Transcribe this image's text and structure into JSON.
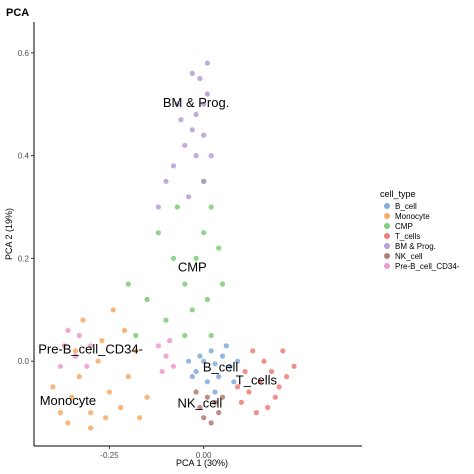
{
  "chart_data": {
    "type": "scatter",
    "title": "PCA",
    "xlabel": "PCA 1 (30%)",
    "ylabel": "PCA 2 (19%)",
    "xlim": [
      -0.45,
      0.42
    ],
    "ylim": [
      -0.165,
      0.66
    ],
    "x_ticks": [
      {
        "value": -0.25,
        "label": "-0.25"
      },
      {
        "value": 0.0,
        "label": "0.00"
      }
    ],
    "y_ticks": [
      {
        "value": 0.0,
        "label": "0.0"
      },
      {
        "value": 0.2,
        "label": "0.2"
      },
      {
        "value": 0.4,
        "label": "0.4"
      },
      {
        "value": 0.6,
        "label": "0.6"
      }
    ],
    "grid": false,
    "legend": {
      "title": "cell_type",
      "position": "right"
    },
    "series": [
      {
        "name": "B_cell",
        "color": "#6f9fd6",
        "points": [
          [
            0.03,
            -0.005
          ],
          [
            0.0,
            0.0
          ],
          [
            0.05,
            0.01
          ],
          [
            -0.02,
            -0.02
          ],
          [
            0.07,
            -0.01
          ],
          [
            0.02,
            0.02
          ],
          [
            -0.04,
            0.0
          ],
          [
            0.04,
            -0.03
          ],
          [
            0.09,
            0.0
          ],
          [
            0.01,
            -0.04
          ],
          [
            0.06,
            0.03
          ],
          [
            -0.01,
            0.01
          ],
          [
            0.03,
            -0.06
          ],
          [
            0.08,
            -0.04
          ],
          [
            -0.03,
            -0.03
          ]
        ]
      },
      {
        "name": "Monocyte",
        "color": "#f79d4f",
        "points": [
          [
            -0.38,
            -0.1
          ],
          [
            -0.35,
            -0.07
          ],
          [
            -0.3,
            -0.1
          ],
          [
            -0.25,
            -0.06
          ],
          [
            -0.33,
            -0.03
          ],
          [
            -0.28,
            0.0
          ],
          [
            -0.22,
            -0.09
          ],
          [
            -0.36,
            -0.12
          ],
          [
            -0.2,
            -0.03
          ],
          [
            -0.27,
            0.04
          ],
          [
            -0.32,
            0.08
          ],
          [
            -0.18,
            0.02
          ],
          [
            -0.24,
            0.1
          ],
          [
            -0.15,
            -0.07
          ],
          [
            -0.3,
            -0.13
          ],
          [
            -0.4,
            -0.05
          ],
          [
            -0.26,
            -0.11
          ],
          [
            -0.21,
            0.06
          ],
          [
            -0.34,
            0.02
          ],
          [
            -0.17,
            -0.11
          ]
        ]
      },
      {
        "name": "CMP",
        "color": "#6cc463",
        "points": [
          [
            -0.02,
            0.2
          ],
          [
            0.0,
            0.25
          ],
          [
            -0.05,
            0.15
          ],
          [
            0.02,
            0.3
          ],
          [
            -0.03,
            0.1
          ],
          [
            -0.08,
            0.2
          ],
          [
            0.01,
            0.12
          ],
          [
            -0.1,
            0.08
          ],
          [
            -0.15,
            0.12
          ],
          [
            -0.05,
            0.05
          ],
          [
            0.04,
            0.22
          ],
          [
            -0.12,
            0.25
          ],
          [
            -0.07,
            0.3
          ],
          [
            0.0,
            0.35
          ],
          [
            -0.2,
            0.15
          ],
          [
            0.02,
            0.05
          ],
          [
            -0.18,
            0.05
          ],
          [
            0.05,
            0.15
          ]
        ]
      },
      {
        "name": "T_cells",
        "color": "#ec6a62",
        "points": [
          [
            0.15,
            -0.04
          ],
          [
            0.18,
            -0.02
          ],
          [
            0.12,
            -0.06
          ],
          [
            0.2,
            -0.05
          ],
          [
            0.16,
            0.0
          ],
          [
            0.22,
            -0.03
          ],
          [
            0.1,
            -0.08
          ],
          [
            0.14,
            -0.1
          ],
          [
            0.19,
            -0.07
          ],
          [
            0.11,
            -0.02
          ],
          [
            0.21,
            0.02
          ],
          [
            0.09,
            -0.05
          ],
          [
            0.17,
            -0.09
          ],
          [
            0.13,
            0.02
          ],
          [
            0.24,
            -0.01
          ]
        ]
      },
      {
        "name": "BM & Prog.",
        "color": "#ac8fd2",
        "points": [
          [
            0.0,
            0.5
          ],
          [
            -0.01,
            0.55
          ],
          [
            -0.03,
            0.45
          ],
          [
            0.01,
            0.58
          ],
          [
            -0.02,
            0.4
          ],
          [
            0.0,
            0.35
          ],
          [
            -0.05,
            0.42
          ],
          [
            -0.08,
            0.38
          ],
          [
            -0.02,
            0.48
          ],
          [
            0.01,
            0.52
          ],
          [
            -0.06,
            0.47
          ],
          [
            -0.1,
            0.35
          ],
          [
            -0.04,
            0.32
          ],
          [
            0.0,
            0.44
          ],
          [
            -0.12,
            0.3
          ],
          [
            0.02,
            0.4
          ],
          [
            -0.03,
            0.56
          ],
          [
            -0.07,
            0.5
          ]
        ]
      },
      {
        "name": "NK_cell",
        "color": "#a5685c",
        "points": [
          [
            0.01,
            -0.07
          ],
          [
            -0.01,
            -0.09
          ],
          [
            0.03,
            -0.08
          ],
          [
            0.0,
            -0.11
          ],
          [
            0.04,
            -0.1
          ],
          [
            -0.02,
            -0.06
          ],
          [
            0.02,
            -0.12
          ],
          [
            0.05,
            -0.07
          ]
        ]
      },
      {
        "name": "Pre-B_cell_CD34-",
        "color": "#e98ac6",
        "points": [
          [
            -0.34,
            0.01
          ],
          [
            -0.37,
            0.03
          ],
          [
            -0.31,
            -0.01
          ],
          [
            -0.33,
            0.05
          ],
          [
            -0.38,
            -0.01
          ],
          [
            -0.3,
            0.03
          ],
          [
            -0.36,
            0.06
          ],
          [
            -0.1,
            0.01
          ],
          [
            -0.12,
            0.03
          ],
          [
            -0.08,
            -0.01
          ],
          [
            -0.11,
            -0.02
          ],
          [
            -0.09,
            0.04
          ]
        ]
      }
    ],
    "cluster_labels": [
      {
        "text": "BM & Prog.",
        "x": -0.02,
        "y": 0.495
      },
      {
        "text": "CMP",
        "x": -0.03,
        "y": 0.175
      },
      {
        "text": "Pre-B_cell_CD34-",
        "x": -0.3,
        "y": 0.015
      },
      {
        "text": "B_cell",
        "x": 0.045,
        "y": -0.02
      },
      {
        "text": "T_cells",
        "x": 0.14,
        "y": -0.045
      },
      {
        "text": "Monocyte",
        "x": -0.36,
        "y": -0.085
      },
      {
        "text": "NK_cell",
        "x": -0.01,
        "y": -0.09
      }
    ]
  }
}
